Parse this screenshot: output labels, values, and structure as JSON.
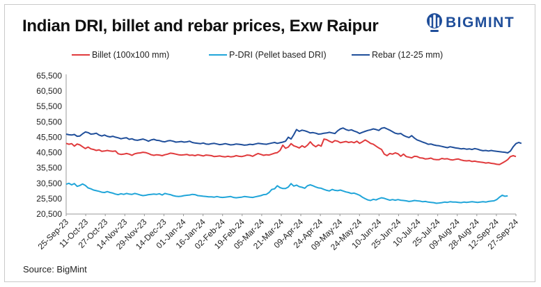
{
  "header": {
    "title": "Indian DRI, billet and rebar prices, Exw Raipur",
    "logo_text": "BIGMINT"
  },
  "footer": {
    "source": "Source: BigMint"
  },
  "chart_data": {
    "type": "line",
    "title": "Indian DRI, billet and rebar prices, Exw Raipur",
    "xlabel": "",
    "ylabel": "",
    "ylim": [
      20500,
      65500
    ],
    "yticks": [
      20500,
      25500,
      30500,
      35500,
      40500,
      45500,
      50500,
      55500,
      60500,
      65500
    ],
    "ytick_labels": [
      "20,500",
      "25,500",
      "30,500",
      "35,500",
      "40,500",
      "45,500",
      "50,500",
      "55,500",
      "60,500",
      "65,500"
    ],
    "x_tick_labels": [
      "25-Sep-23",
      "11-Oct-23",
      "27-Oct-23",
      "14-Nov-23",
      "29-Nov-23",
      "14-Dec-23",
      "01-Jan-24",
      "16-Jan-24",
      "02-Feb-24",
      "19-Feb-24",
      "05-Mar-24",
      "21-Mar-24",
      "09-Apr-24",
      "24-Apr-24",
      "09-May-24",
      "24-May-24",
      "10-Jun-24",
      "25-Jun-24",
      "10-Jul-24",
      "25-Jul-24",
      "09-Aug-24",
      "28-Aug-24",
      "12-Sep-24",
      "27-Sep-24"
    ],
    "legend_position": "top",
    "grid": false,
    "series": [
      {
        "name": "Billet (100x100 mm)",
        "color": "#e03a3c",
        "values": [
          43500,
          43200,
          43400,
          42600,
          43300,
          43000,
          42400,
          41800,
          42300,
          41700,
          41500,
          41200,
          41400,
          40900,
          41000,
          41200,
          41000,
          40900,
          41000,
          40100,
          39900,
          40000,
          40200,
          40000,
          39600,
          40100,
          40300,
          40400,
          40600,
          40500,
          40200,
          39800,
          39600,
          39800,
          39700,
          39500,
          39800,
          40000,
          40300,
          40200,
          40000,
          39800,
          39700,
          39800,
          39900,
          39600,
          39700,
          39500,
          39800,
          39600,
          39400,
          39700,
          39600,
          39500,
          39200,
          39300,
          39400,
          39200,
          39100,
          39300,
          39100,
          39200,
          39500,
          39300,
          39200,
          39400,
          39700,
          39600,
          39300,
          39800,
          40200,
          39900,
          39600,
          39800,
          39700,
          40000,
          40300,
          40500,
          41200,
          42900,
          41900,
          42300,
          43400,
          42700,
          42400,
          42000,
          42700,
          42200,
          42900,
          44000,
          43000,
          42400,
          43000,
          42600,
          44900,
          44700,
          44200,
          43800,
          44400,
          44200,
          43700,
          43900,
          44100,
          43800,
          44000,
          43700,
          44200,
          43500,
          44000,
          44600,
          44100,
          43500,
          43200,
          42600,
          42000,
          41500,
          40000,
          39500,
          40200,
          40000,
          40400,
          40100,
          39300,
          40000,
          39200,
          39000,
          38800,
          39300,
          39200,
          38800,
          38700,
          38400,
          38500,
          38700,
          38300,
          38200,
          38200,
          38600,
          38400,
          38500,
          38200,
          38100,
          38300,
          38400,
          38100,
          37900,
          37800,
          37900,
          37600,
          37700,
          37500,
          37400,
          37300,
          37100,
          37200,
          37000,
          36900,
          36700,
          36600,
          37100,
          37600,
          38200,
          39200,
          39500,
          39200
        ]
      },
      {
        "name": "P-DRI (Pellet based DRI)",
        "color": "#20a5d9",
        "values": [
          30200,
          30500,
          30000,
          30400,
          29500,
          29800,
          30300,
          29800,
          29000,
          28700,
          28300,
          28100,
          27900,
          27600,
          27500,
          27800,
          27500,
          27300,
          27000,
          26800,
          27100,
          26900,
          27200,
          27000,
          26900,
          27200,
          27000,
          26700,
          26500,
          26600,
          26800,
          26900,
          27000,
          26900,
          27100,
          26700,
          27200,
          27000,
          26800,
          26500,
          26300,
          26200,
          26300,
          26500,
          26600,
          26700,
          26900,
          26800,
          26500,
          26400,
          26300,
          26200,
          26100,
          26100,
          26000,
          26200,
          26000,
          25900,
          26000,
          26100,
          26200,
          25900,
          25800,
          25900,
          26000,
          26200,
          26100,
          26000,
          25900,
          26100,
          26300,
          26500,
          26800,
          26900,
          27500,
          28500,
          28700,
          29700,
          29100,
          28800,
          28800,
          29300,
          30400,
          29600,
          29900,
          29400,
          29200,
          28900,
          29700,
          30000,
          29700,
          29300,
          29000,
          28900,
          28500,
          28200,
          28000,
          28500,
          28200,
          28100,
          28300,
          28000,
          27700,
          27500,
          27200,
          27300,
          27000,
          26600,
          26000,
          25500,
          25100,
          24900,
          25300,
          25100,
          25500,
          25800,
          25600,
          25300,
          25000,
          25200,
          25000,
          25200,
          25000,
          24900,
          24800,
          24600,
          24700,
          24900,
          24800,
          24700,
          24500,
          24600,
          24400,
          24300,
          24200,
          24000,
          24100,
          24200,
          24400,
          24300,
          24500,
          24400,
          24400,
          24300,
          24200,
          24400,
          24300,
          24400,
          24500,
          24400,
          24300,
          24400,
          24500,
          24400,
          24600,
          24700,
          24800,
          25200,
          26000,
          26600,
          26300,
          26400
        ]
      },
      {
        "name": "Rebar (12-25 mm)",
        "color": "#1f4e9a",
        "values": [
          46500,
          46300,
          46200,
          46400,
          45800,
          45900,
          46600,
          47200,
          47000,
          46500,
          46600,
          46800,
          46200,
          45900,
          46200,
          45800,
          45600,
          45800,
          45500,
          45300,
          45000,
          45200,
          45300,
          44800,
          45000,
          44600,
          44500,
          44700,
          44900,
          44600,
          44200,
          44600,
          44800,
          44500,
          44400,
          44100,
          44000,
          44300,
          44400,
          44200,
          43900,
          44000,
          44100,
          43900,
          44000,
          44200,
          43800,
          43600,
          43500,
          43400,
          43600,
          43300,
          43200,
          43400,
          43500,
          43300,
          43100,
          43200,
          43400,
          43200,
          43000,
          43100,
          43300,
          43200,
          43100,
          42900,
          43000,
          43200,
          43100,
          43300,
          43500,
          43400,
          43300,
          43200,
          43400,
          43600,
          43800,
          43500,
          43700,
          43900,
          44200,
          45500,
          44900,
          46300,
          48000,
          47400,
          47800,
          47600,
          47300,
          46900,
          47000,
          46800,
          46500,
          46600,
          46800,
          46900,
          47100,
          46900,
          46700,
          47600,
          48200,
          48500,
          48000,
          47700,
          47900,
          47500,
          47200,
          46700,
          47100,
          47400,
          47700,
          47900,
          48200,
          48000,
          47700,
          48400,
          48600,
          48200,
          47800,
          47300,
          46800,
          46600,
          46700,
          46100,
          45700,
          45400,
          46000,
          45200,
          44600,
          44300,
          43900,
          43600,
          43200,
          43300,
          43000,
          42800,
          42700,
          42500,
          42300,
          42100,
          42400,
          42200,
          42000,
          41900,
          41700,
          41800,
          41600,
          41700,
          41500,
          41800,
          41600,
          41300,
          41100,
          41200,
          41000,
          41200,
          41000,
          40900,
          40800,
          40700,
          40600,
          40400,
          41000,
          42400,
          43400,
          43800,
          43500
        ]
      }
    ]
  }
}
